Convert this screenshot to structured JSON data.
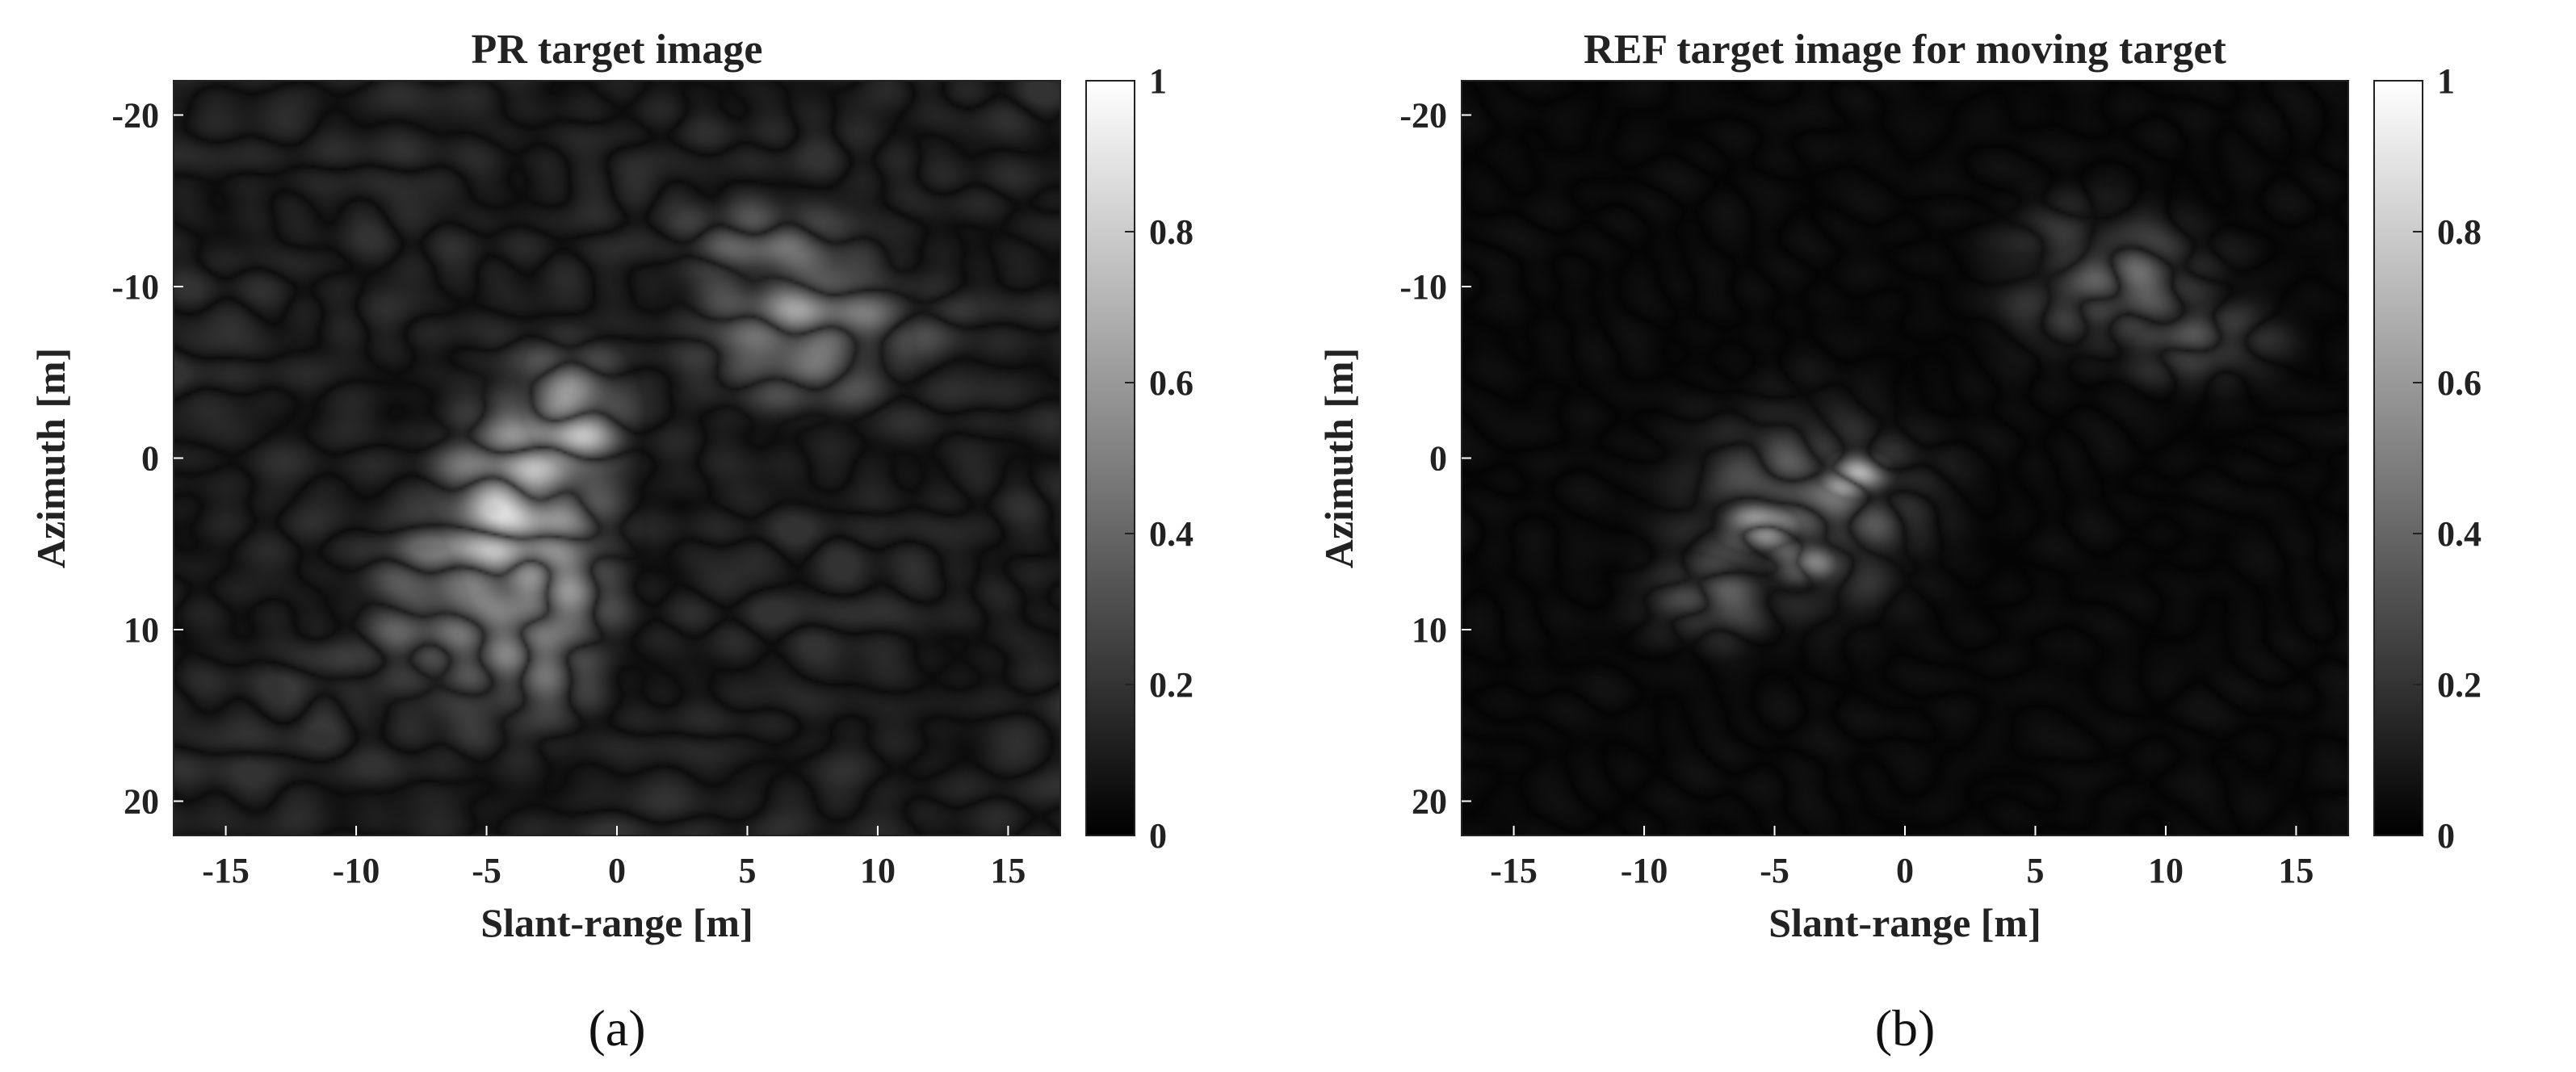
{
  "chart_data": [
    {
      "type": "heatmap",
      "panel_label": "(a)",
      "title": "PR target image",
      "xlabel": "Slant-range [m]",
      "ylabel": "Azimuth [m]",
      "xlim": [
        -17,
        17
      ],
      "ylim": [
        -22,
        22
      ],
      "y_direction": "down",
      "xticks": [
        -15,
        -10,
        -5,
        0,
        5,
        10,
        15
      ],
      "yticks": [
        -20,
        -10,
        0,
        10,
        20
      ],
      "colormap": "gray",
      "colorbar": {
        "range": [
          0,
          1
        ],
        "ticks": [
          0,
          0.2,
          0.4,
          0.6,
          0.8,
          1
        ]
      },
      "bright_regions": [
        {
          "x": -3.5,
          "y": 5,
          "sx": 2.6,
          "sy": 7.5,
          "peak": 0.85
        },
        {
          "x": -2,
          "y": -2,
          "sx": 1.8,
          "sy": 3.5,
          "peak": 0.8
        },
        {
          "x": -5.5,
          "y": 9,
          "sx": 3.5,
          "sy": 6,
          "peak": 0.55
        },
        {
          "x": 7,
          "y": -8,
          "sx": 3.5,
          "sy": 4.5,
          "peak": 0.6
        },
        {
          "x": 5.5,
          "y": -12,
          "sx": 3,
          "sy": 3,
          "peak": 0.45
        },
        {
          "x": 12,
          "y": -8,
          "sx": 2,
          "sy": 3,
          "peak": 0.3
        },
        {
          "x": -11,
          "y": 13,
          "sx": 2.5,
          "sy": 4,
          "peak": 0.25
        }
      ],
      "background_level": 0.18
    },
    {
      "type": "heatmap",
      "panel_label": "(b)",
      "title": "REF target image for moving target",
      "xlabel": "Slant-range [m]",
      "ylabel": "Azimuth [m]",
      "xlim": [
        -17,
        17
      ],
      "ylim": [
        -22,
        22
      ],
      "y_direction": "down",
      "xticks": [
        -15,
        -10,
        -5,
        0,
        5,
        10,
        15
      ],
      "yticks": [
        -20,
        -10,
        0,
        10,
        20
      ],
      "colormap": "gray",
      "colorbar": {
        "range": [
          0,
          1
        ],
        "ticks": [
          0,
          0.2,
          0.4,
          0.6,
          0.8,
          1
        ]
      },
      "bright_regions": [
        {
          "x": -2,
          "y": 1,
          "sx": 1,
          "sy": 1,
          "peak": 1.0
        },
        {
          "x": -5.5,
          "y": 4,
          "sx": 1.2,
          "sy": 1.1,
          "peak": 0.95
        },
        {
          "x": -4,
          "y": 6,
          "sx": 1,
          "sy": 1,
          "peak": 0.9
        },
        {
          "x": -4,
          "y": 3,
          "sx": 3.5,
          "sy": 4.5,
          "peak": 0.45
        },
        {
          "x": -7.5,
          "y": 8,
          "sx": 2,
          "sy": 2,
          "peak": 0.45
        },
        {
          "x": 8,
          "y": -10,
          "sx": 3,
          "sy": 3,
          "peak": 0.45
        },
        {
          "x": 11,
          "y": -7,
          "sx": 2.5,
          "sy": 2,
          "peak": 0.4
        },
        {
          "x": 6,
          "y": -13,
          "sx": 2,
          "sy": 2,
          "peak": 0.3
        }
      ],
      "background_level": 0.06
    }
  ]
}
